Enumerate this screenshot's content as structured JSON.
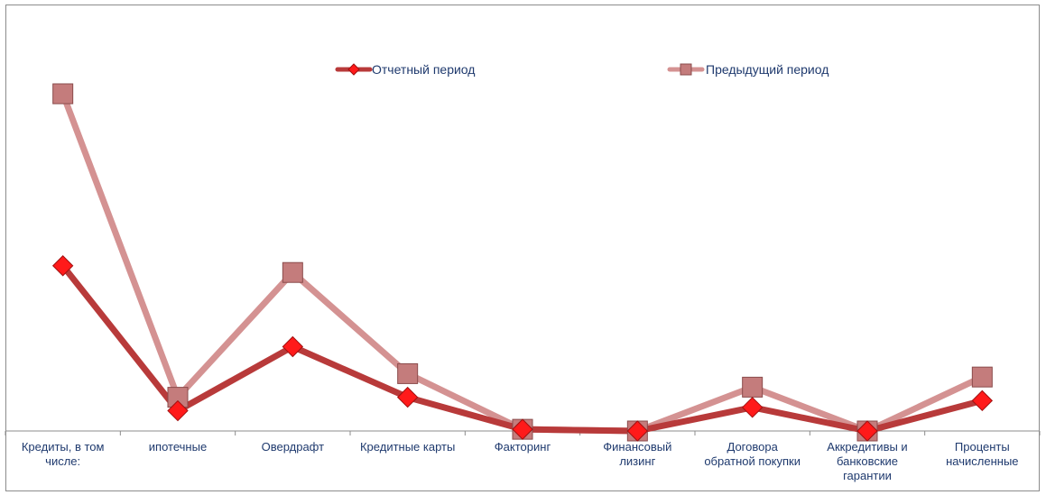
{
  "chart_data": {
    "type": "line",
    "categories": [
      [
        "Кредиты, в том",
        "числе:"
      ],
      [
        "ипотечные"
      ],
      [
        "Овердрафт"
      ],
      [
        "Кредитные карты"
      ],
      [
        "Факторинг"
      ],
      [
        "Финансовый",
        "лизинг"
      ],
      [
        "Договора",
        "обратной покупки"
      ],
      [
        "Аккредитивы и",
        "банковские",
        "гарантии"
      ],
      [
        "Проценты",
        "начисленные"
      ]
    ],
    "series": [
      {
        "name": "Отчетный период",
        "color": "#b83a3a",
        "marker": "diamond",
        "marker_color": "#ff1a1a",
        "values": [
          49,
          6,
          25,
          10,
          0.5,
          0,
          7,
          0,
          9
        ]
      },
      {
        "name": "Предыдущий период",
        "color": "#d49292",
        "marker": "square",
        "marker_color": "#c47c7c",
        "values": [
          100,
          10,
          47,
          17,
          0.5,
          0,
          13,
          0,
          16
        ]
      }
    ],
    "ylim": [
      0,
      100
    ],
    "grid": false,
    "legend": "top-center"
  }
}
